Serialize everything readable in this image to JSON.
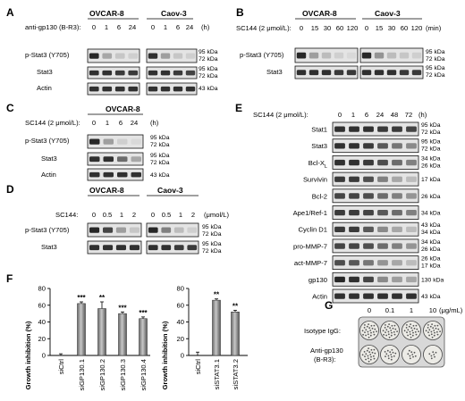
{
  "panels": {
    "A": {
      "letter": "A",
      "treatment_label": "anti-gp130 (B-R3):",
      "cell_lines": [
        "OVCAR-8",
        "Caov-3"
      ],
      "lanes": [
        "0",
        "1",
        "6",
        "24"
      ],
      "unit": "(h)",
      "rows": [
        "p-Stat3 (Y705)",
        "Stat3",
        "Actin"
      ],
      "kda": [
        "95 kDa",
        "72 kDa",
        "95 kDa",
        "72 kDa",
        "43 kDa"
      ]
    },
    "B": {
      "letter": "B",
      "treatment_label": "SC144 (2 μmol/L):",
      "cell_lines": [
        "OVCAR-8",
        "Caov-3"
      ],
      "lanes": [
        "0",
        "15",
        "30",
        "60",
        "120"
      ],
      "unit": "(min)",
      "rows": [
        "p-Stat3 (Y705)",
        "Stat3"
      ],
      "kda": [
        "95 kDa",
        "72 kDa",
        "95 kDa",
        "72 kDa"
      ]
    },
    "C": {
      "letter": "C",
      "treatment_label": "SC144 (2 μmol/L):",
      "cell_line": "OVCAR-8",
      "lanes": [
        "0",
        "1",
        "6",
        "24"
      ],
      "unit": "(h)",
      "rows": [
        "p-Stat3 (Y705)",
        "Stat3",
        "Actin"
      ],
      "kda": [
        "95 kDa",
        "72 kDa",
        "95 kDa",
        "72 kDa",
        "43 kDa"
      ]
    },
    "D": {
      "letter": "D",
      "treatment_label": "SC144:",
      "cell_lines": [
        "OVCAR-8",
        "Caov-3"
      ],
      "lanes": [
        "0",
        "0.5",
        "1",
        "2"
      ],
      "unit": "(μmol/L)",
      "rows": [
        "p-Stat3 (Y705)",
        "Stat3"
      ],
      "kda": [
        "95 kDa",
        "72 kDa",
        "95 kDa",
        "72 kDa"
      ]
    },
    "E": {
      "letter": "E",
      "treatment_label": "SC144 (2 μmol/L):",
      "lanes": [
        "0",
        "1",
        "6",
        "24",
        "48",
        "72"
      ],
      "unit": "(h)",
      "rows": [
        {
          "label": "Stat1",
          "kda": [
            "95 kDa",
            "72 kDa"
          ]
        },
        {
          "label": "Stat3",
          "kda": [
            "95 kDa",
            "72 kDa"
          ]
        },
        {
          "label": "Bcl-X",
          "sub": "L",
          "kda": [
            "34 kDa",
            "26 kDa"
          ]
        },
        {
          "label": "Survivin",
          "kda": [
            "17 kDa"
          ]
        },
        {
          "label": "Bcl-2",
          "kda": [
            "26 kDa"
          ]
        },
        {
          "label": "Ape1/Ref-1",
          "kda": [
            "34 kDa"
          ]
        },
        {
          "label": "Cyclin D1",
          "kda": [
            "43 kDa",
            "34 kDa"
          ]
        },
        {
          "label": "pro-MMP-7",
          "kda": [
            "34 kDa",
            "26 kDa"
          ]
        },
        {
          "label": "act-MMP-7",
          "kda": [
            "26 kDa",
            "17 kDa"
          ]
        },
        {
          "label": "gp130",
          "kda": [
            "130 kDa"
          ]
        },
        {
          "label": "Actin",
          "kda": [
            "43 kDa"
          ]
        }
      ]
    },
    "F": {
      "letter": "F"
    },
    "G": {
      "letter": "G",
      "lanes": [
        "0",
        "0.1",
        "1",
        "10"
      ],
      "unit": "(μg/mL)",
      "row1": "Isotype IgG:",
      "row2a": "Anti-gp130",
      "row2b": "(B-R3):"
    }
  },
  "chart_data": [
    {
      "type": "bar",
      "ylabel": "Growth inhibition (%)",
      "categories": [
        "siCtrl",
        "siGP130.1",
        "siGP130.2",
        "siGP130.3",
        "siGP130.4"
      ],
      "values": [
        0,
        62,
        56,
        50,
        44
      ],
      "errors": [
        2,
        2,
        8,
        2,
        2
      ],
      "significance": [
        "",
        "***",
        "**",
        "***",
        "***"
      ],
      "ylim": [
        0,
        80
      ],
      "yticks": [
        "0",
        "20",
        "40",
        "60",
        "80"
      ]
    },
    {
      "type": "bar",
      "ylabel": "Growth inhibition (%)",
      "categories": [
        "siCtrl",
        "siSTAT3.1",
        "siSTAT3.2"
      ],
      "values": [
        0,
        66,
        52
      ],
      "errors": [
        4,
        1.5,
        2
      ],
      "significance": [
        "",
        "**",
        "**"
      ],
      "ylim": [
        0,
        80
      ],
      "yticks": [
        "0",
        "20",
        "40",
        "60",
        "80"
      ]
    }
  ]
}
